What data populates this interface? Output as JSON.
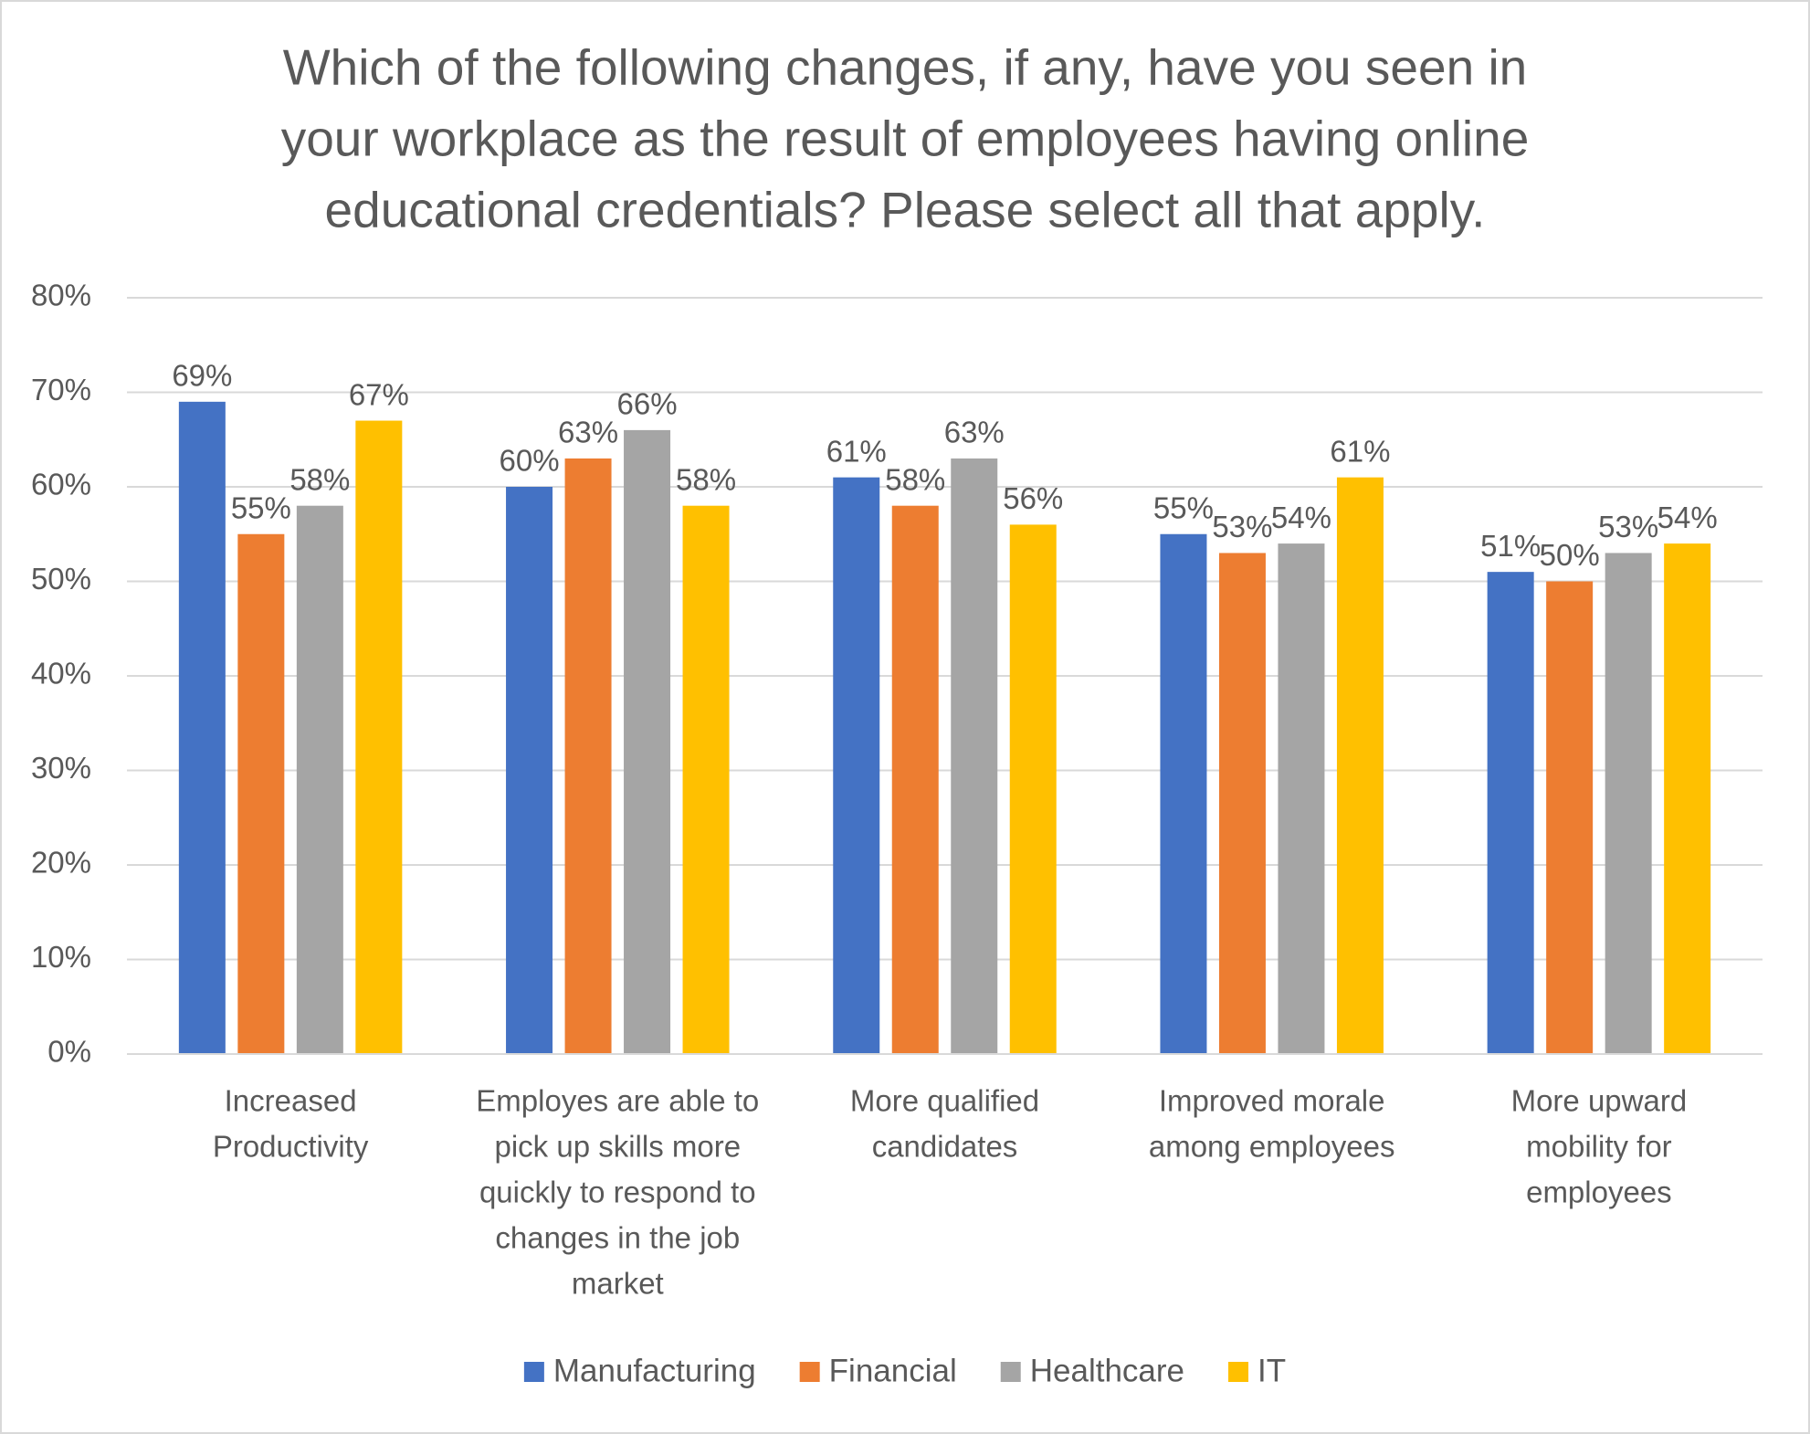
{
  "chart_data": {
    "type": "bar",
    "title": [
      "Which of the following changes, if any, have you seen in",
      "your workplace as the result of employees having online",
      "educational credentials? Please select all that apply."
    ],
    "categories": [
      [
        "Increased",
        "Productivity"
      ],
      [
        "Employes are able to",
        "pick up skills more",
        "quickly to respond to",
        "changes in the job",
        "market"
      ],
      [
        "More qualified",
        "candidates"
      ],
      [
        "Improved morale",
        "among employees"
      ],
      [
        "More upward",
        "mobility for",
        "employees"
      ]
    ],
    "series": [
      {
        "name": "Manufacturing",
        "color": "#4472c4",
        "values": [
          69,
          60,
          61,
          55,
          51
        ],
        "value_labels": [
          "69%",
          "60%",
          "61%",
          "55%",
          "51%"
        ]
      },
      {
        "name": "Financial",
        "color": "#ed7d31",
        "values": [
          55,
          63,
          58,
          53,
          50
        ],
        "value_labels": [
          "55%",
          "63%",
          "58%",
          "53%",
          "50%"
        ]
      },
      {
        "name": "Healthcare",
        "color": "#a5a5a5",
        "values": [
          58,
          66,
          63,
          54,
          53
        ],
        "value_labels": [
          "58%",
          "66%",
          "63%",
          "54%",
          "53%"
        ]
      },
      {
        "name": "IT",
        "color": "#ffc000",
        "values": [
          67,
          58,
          56,
          61,
          54
        ],
        "value_labels": [
          "67%",
          "58%",
          "56%",
          "61%",
          "54%"
        ]
      }
    ],
    "ylim": [
      0,
      80
    ],
    "yticks": [
      {
        "value": 0,
        "label": "0%"
      },
      {
        "value": 10,
        "label": "10%"
      },
      {
        "value": 20,
        "label": "20%"
      },
      {
        "value": 30,
        "label": "30%"
      },
      {
        "value": 40,
        "label": "40%"
      },
      {
        "value": 50,
        "label": "50%"
      },
      {
        "value": 60,
        "label": "60%"
      },
      {
        "value": 70,
        "label": "70%"
      },
      {
        "value": 80,
        "label": "80%"
      }
    ],
    "grid": true,
    "legend": "bottom"
  }
}
